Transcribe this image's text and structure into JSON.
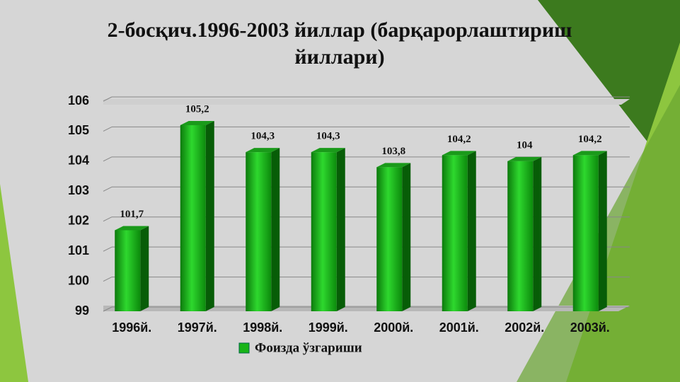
{
  "chart_data": {
    "type": "bar",
    "title": "2-босқич.1996-2003 йиллар (барқарорлаштириш йиллари)",
    "categories": [
      "1996й.",
      "1997й.",
      "1998й.",
      "1999й.",
      "2000й.",
      "2001й.",
      "2002й.",
      "2003й."
    ],
    "series": [
      {
        "name": "Фоизда ўзгариши",
        "color": "#18b418",
        "values": [
          101.7,
          105.2,
          104.3,
          104.3,
          103.8,
          104.2,
          104,
          104.2
        ],
        "value_labels": [
          "101,7",
          "105,2",
          "104,3",
          "104,3",
          "103,8",
          "104,2",
          "104",
          "104,2"
        ]
      }
    ],
    "ylim": [
      99,
      106
    ],
    "yticks": [
      99,
      100,
      101,
      102,
      103,
      104,
      105,
      106
    ],
    "grid": true,
    "legend": "bottom"
  }
}
